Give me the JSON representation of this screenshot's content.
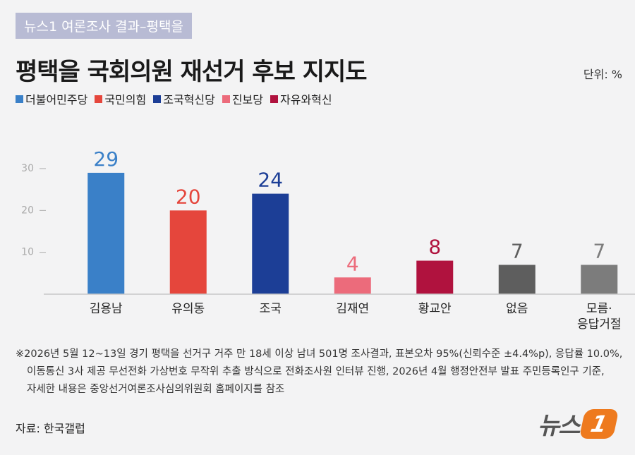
{
  "header": {
    "tag": "뉴스1 여론조사 결과–평택을",
    "unit": "단위: %"
  },
  "chart_data": {
    "type": "bar",
    "title": "평택을 국회의원 재선거 후보 지지도",
    "legend": [
      {
        "name": "더불어민주당",
        "color": "#3a80c8"
      },
      {
        "name": "국민의힘",
        "color": "#e5463c"
      },
      {
        "name": "조국혁신당",
        "color": "#1c3e96"
      },
      {
        "name": "진보당",
        "color": "#ec6b7b"
      },
      {
        "name": "자유와혁신",
        "color": "#b0123e"
      }
    ],
    "categories": [
      "김용남",
      "유의동",
      "조국",
      "김재연",
      "황교안",
      "없음",
      "모름·\n응답거절"
    ],
    "values": [
      29,
      20,
      24,
      4,
      8,
      7,
      7
    ],
    "colors": [
      "#3a80c8",
      "#e5463c",
      "#1c3e96",
      "#ec6b7b",
      "#b0123e",
      "#5e5e5e",
      "#7c7c7c"
    ],
    "ylim": [
      0,
      30
    ],
    "yticks": [
      10,
      20,
      30
    ]
  },
  "footnote": [
    "※2026년 5월 12~13일 경기 평택을 선거구 거주 만 18세 이상 남녀 501명 조사결과, 표본오차 95%(신뢰수준 ±4.4%p), 응답률 10.0%,",
    "이동통신 3사 제공 무선전화 가상번호 무작위 추출 방식으로 전화조사원 인터뷰 진행, 2026년 4월 행정안전부 발표 주민등록인구 기준,",
    "자세한 내용은 중앙선거여론조사심의위원회 홈페이지를 참조"
  ],
  "source": "자료: 한국갤럽",
  "logo": {
    "text": "뉴스",
    "mark": "1"
  }
}
